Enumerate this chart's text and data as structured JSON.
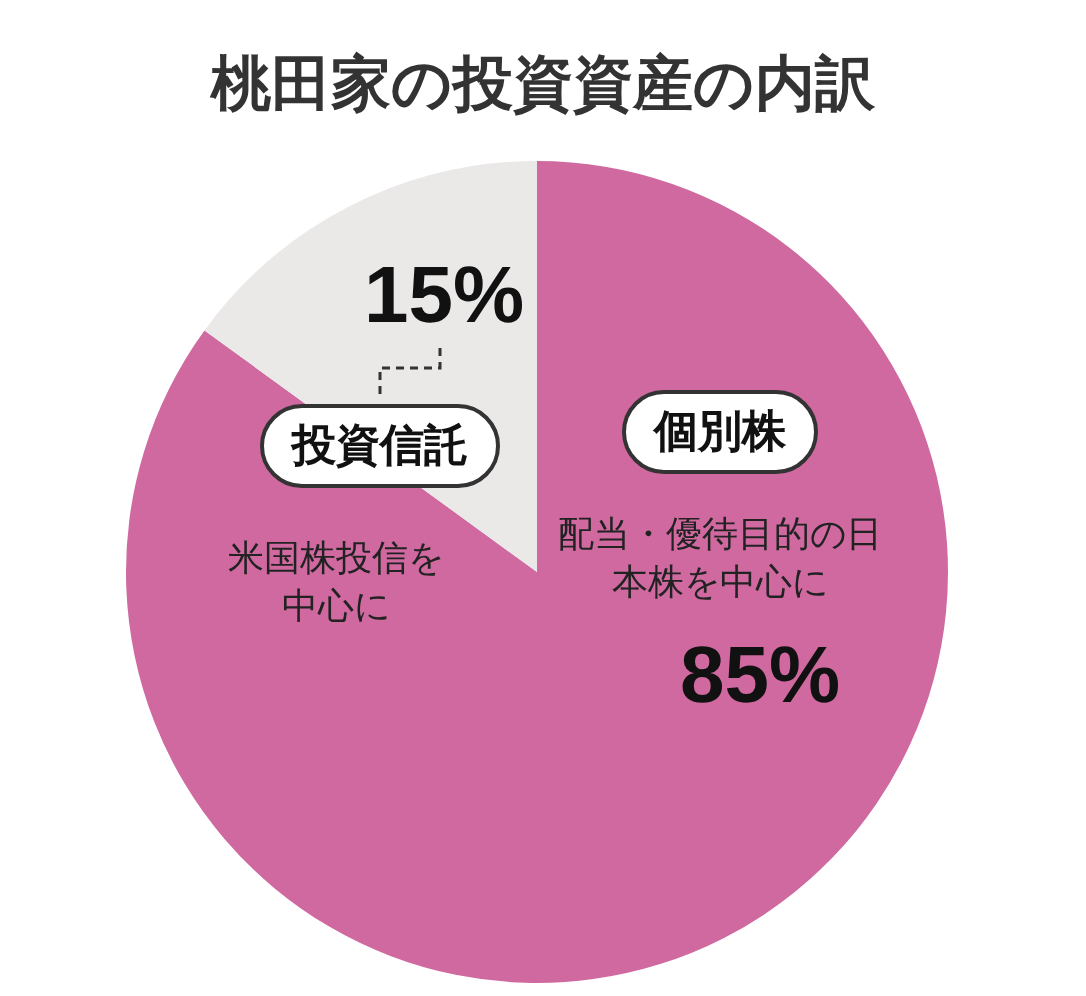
{
  "chart_data": {
    "type": "pie",
    "title": "桃田家の投資資産の内訳",
    "categories": [
      "個別株",
      "投資信託"
    ],
    "values": [
      85,
      15
    ],
    "colors": [
      "#cf69a0",
      "#ebe8e8"
    ],
    "value_labels": [
      "85%",
      "15%"
    ],
    "annotations": [
      "配当・優待目的の日本株を中心に",
      "米国株投信を中心に"
    ],
    "legend": false
  }
}
